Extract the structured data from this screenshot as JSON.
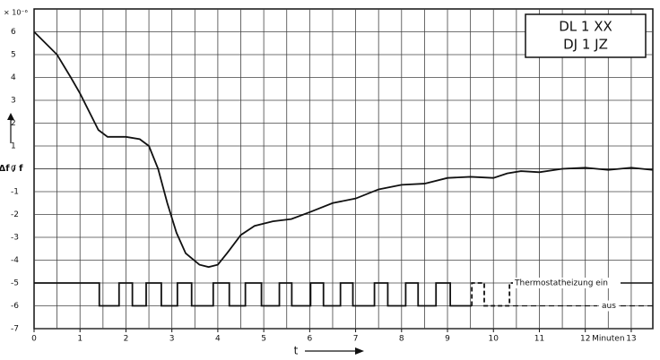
{
  "chart_data": {
    "type": "line",
    "badge": [
      "DL 1 XX",
      "DJ 1 JZ"
    ],
    "y_exponent": "× 10⁻⁶",
    "y_label": "Δf / f",
    "x_label": "t",
    "x_unit": "Minuten",
    "xlim": [
      0,
      13.47
    ],
    "ylim": [
      -7,
      7
    ],
    "xticks": [
      0,
      1,
      2,
      3,
      4,
      5,
      6,
      7,
      8,
      9,
      10,
      11,
      12,
      13
    ],
    "yticks": [
      -7,
      -6,
      -5,
      -4,
      -3,
      -2,
      -1,
      0,
      1,
      2,
      3,
      4,
      5,
      6
    ],
    "x_minor_grid": 0.5,
    "grid": true,
    "series": [
      {
        "color": "#111",
        "x": [
          0,
          0.5,
          0.8,
          1,
          1.4,
          1.6,
          2,
          2.3,
          2.5,
          2.7,
          2.9,
          3.1,
          3.3,
          3.6,
          3.8,
          4,
          4.2,
          4.5,
          4.8,
          5.2,
          5.6,
          6,
          6.5,
          7,
          7.5,
          8,
          8.5,
          9,
          9.5,
          10,
          10.3,
          10.6,
          11,
          11.5,
          12,
          12.5,
          13,
          13.47
        ],
        "values": [
          6,
          5,
          4,
          3.3,
          1.7,
          1.4,
          1.4,
          1.3,
          1,
          0,
          -1.5,
          -2.8,
          -3.7,
          -4.2,
          -4.3,
          -4.2,
          -3.7,
          -2.9,
          -2.5,
          -2.3,
          -2.2,
          -1.9,
          -1.5,
          -1.3,
          -0.9,
          -0.7,
          -0.65,
          -0.4,
          -0.35,
          -0.4,
          -0.2,
          -0.1,
          -0.15,
          0,
          0.05,
          -0.05,
          0.05,
          -0.05
        ]
      },
      {
        "color": "#111",
        "dashed": false,
        "x": [
          0,
          1.42,
          1.42,
          1.85,
          1.85,
          2.14,
          2.14,
          2.44,
          2.44,
          2.77,
          2.77,
          3.12,
          3.12,
          3.43,
          3.43,
          3.9,
          3.9,
          4.25,
          4.25,
          4.6,
          4.6,
          4.95,
          4.95,
          5.34,
          5.34,
          5.61,
          5.61,
          6.02,
          6.02,
          6.3,
          6.3,
          6.67,
          6.67,
          6.94,
          6.94,
          7.41,
          7.41,
          7.7,
          7.7,
          8.09,
          8.09,
          8.36,
          8.36,
          8.75,
          8.75,
          9.06,
          9.06,
          9.53
        ],
        "values": [
          -5,
          -5,
          -6,
          -6,
          -5,
          -5,
          -6,
          -6,
          -5,
          -5,
          -6,
          -6,
          -5,
          -5,
          -6,
          -6,
          -5,
          -5,
          -6,
          -6,
          -5,
          -5,
          -6,
          -6,
          -5,
          -5,
          -6,
          -6,
          -5,
          -5,
          -6,
          -6,
          -5,
          -5,
          -6,
          -6,
          -5,
          -5,
          -6,
          -6,
          -5,
          -5,
          -6,
          -6,
          -5,
          -5,
          -6,
          -6
        ]
      },
      {
        "color": "#111",
        "dashed": true,
        "x": [
          9.53,
          9.53,
          9.8,
          9.8,
          10.35,
          10.35,
          10.5
        ],
        "values": [
          -6,
          -5,
          -5,
          -6,
          -6,
          -5,
          -5
        ]
      }
    ],
    "annotations": [
      {
        "text": "Thermostatheizung  ein",
        "y": -5
      },
      {
        "text": "aus",
        "y": -6
      }
    ]
  }
}
